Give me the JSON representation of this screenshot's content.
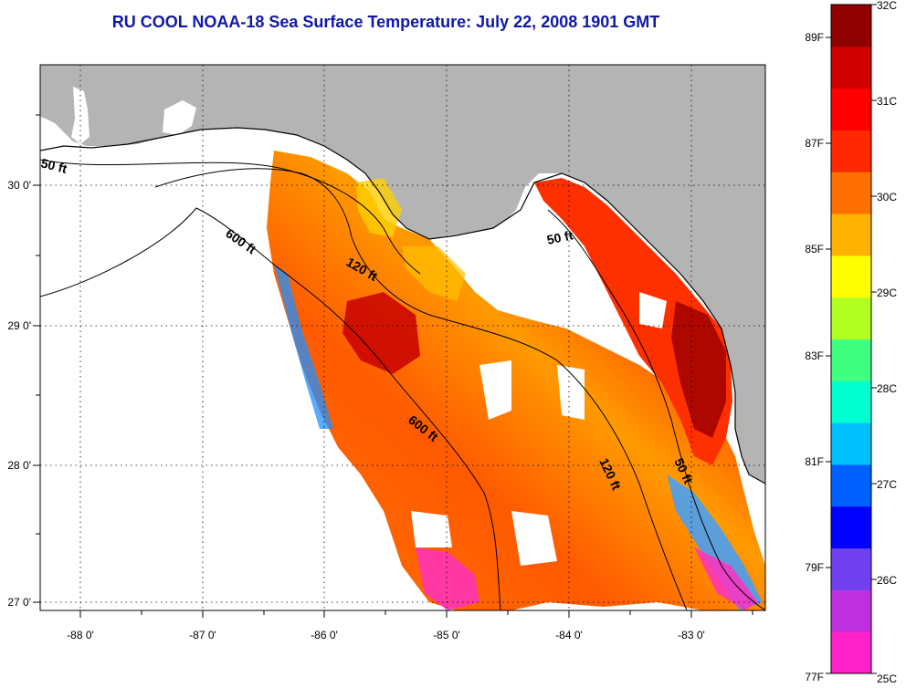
{
  "title": "RU COOL  NOAA-18  Sea Surface Temperature:  July 22, 2008 1901 GMT",
  "map": {
    "lon_labels": [
      "-88 0'",
      "-87 0'",
      "-86 0'",
      "-85 0'",
      "-84 0'",
      "-83 0'"
    ],
    "lat_labels": [
      "30 0'",
      "29 0'",
      "28 0'",
      "27 0'"
    ],
    "depth_contours": [
      {
        "label": "50 ft",
        "location": "west"
      },
      {
        "label": "600 ft",
        "location": "north"
      },
      {
        "label": "120 ft",
        "location": "north"
      },
      {
        "label": "50 ft",
        "location": "big-bend"
      },
      {
        "label": "600 ft",
        "location": "central"
      },
      {
        "label": "120 ft",
        "location": "south"
      },
      {
        "label": "50 ft",
        "location": "south"
      }
    ],
    "colors": {
      "land": "#b4b4b4",
      "no_data": "#ffffff",
      "contour": "#000000"
    }
  },
  "colorbar": {
    "celsius_labels": [
      "32C",
      "31C",
      "30C",
      "29C",
      "28C",
      "27C",
      "26C",
      "25C"
    ],
    "fahrenheit_labels": [
      "89F",
      "87F",
      "85F",
      "83F",
      "81F",
      "79F",
      "77F"
    ],
    "colors": [
      "#ff20c8",
      "#c030e0",
      "#7040f0",
      "#0000ff",
      "#0060ff",
      "#00c0ff",
      "#00ffd0",
      "#40ff80",
      "#b0ff20",
      "#ffff00",
      "#ffb000",
      "#ff7000",
      "#ff2800",
      "#ff0000",
      "#d00000",
      "#900000"
    ]
  }
}
